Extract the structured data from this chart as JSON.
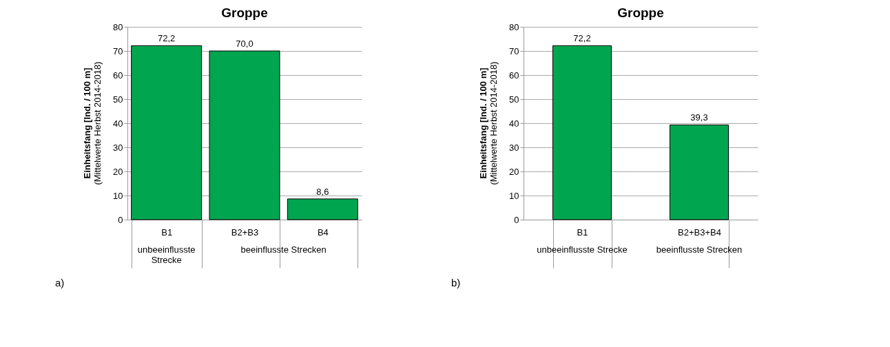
{
  "chart_data": [
    {
      "type": "bar",
      "title": "Groppe",
      "ylabel": "Einheitsfang [Ind. / 100 m]\n(Mittelwerte Herbst 2014-2018)",
      "categories": [
        "B1",
        "B2+B3",
        "B4"
      ],
      "values": [
        72.2,
        70.0,
        8.6
      ],
      "value_labels": [
        "72,2",
        "70,0",
        "8,6"
      ],
      "color": "#00a550",
      "ylim": [
        0,
        80
      ],
      "yticks": [
        0,
        10,
        20,
        30,
        40,
        50,
        60,
        70,
        80
      ],
      "grid": "y",
      "legend": false,
      "annotations": [
        "unbeeinflusste Strecke",
        "beeinflusste Strecken",
        "a)"
      ]
    },
    {
      "type": "bar",
      "title": "Groppe",
      "ylabel": "Einheitsfang [Ind. / 100 m]\n(Mittelwerte Herbst 2014-2018)",
      "categories": [
        "B1",
        "B2+B3+B4"
      ],
      "values": [
        72.2,
        39.3
      ],
      "value_labels": [
        "72,2",
        "39,3"
      ],
      "color": "#00a550",
      "ylim": [
        0,
        80
      ],
      "yticks": [
        0,
        10,
        20,
        30,
        40,
        50,
        60,
        70,
        80
      ],
      "grid": "y",
      "legend": false,
      "annotations": [
        "unbeeinflusste Strecke",
        "beeinflusste Strecken",
        "b)"
      ]
    }
  ]
}
